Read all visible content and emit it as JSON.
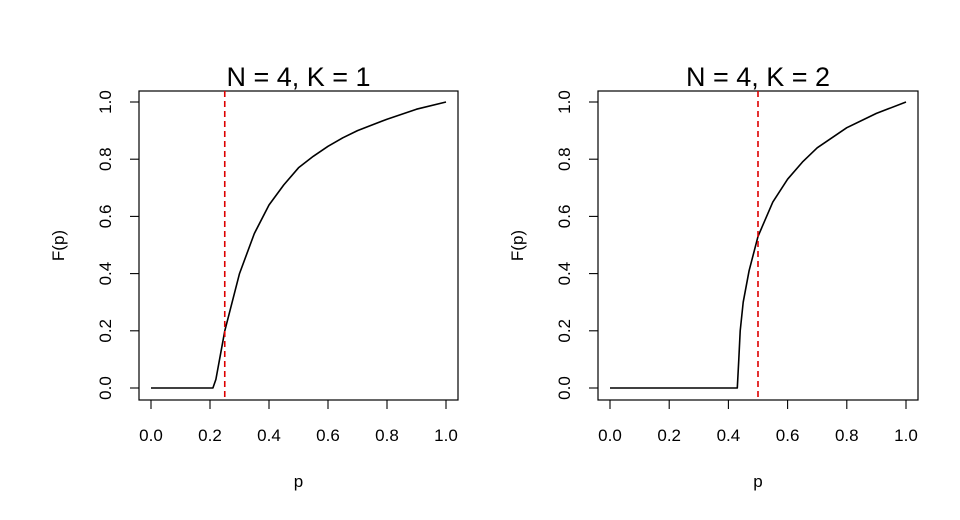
{
  "chart_data": [
    {
      "type": "line",
      "title": "N = 4, K = 1",
      "xlabel": "p",
      "ylabel": "F(p)",
      "xlim": [
        0,
        1
      ],
      "ylim": [
        0,
        1
      ],
      "xticks": [
        "0.0",
        "0.2",
        "0.4",
        "0.6",
        "0.8",
        "1.0"
      ],
      "yticks": [
        "0.0",
        "0.2",
        "0.4",
        "0.6",
        "0.8",
        "1.0"
      ],
      "grid": false,
      "reference_line": {
        "orientation": "vertical",
        "x": 0.25,
        "style": "dashed",
        "color": "#dd0000"
      },
      "series": [
        {
          "color": "#000000",
          "x": [
            0,
            0.21,
            0.22,
            0.25,
            0.3,
            0.35,
            0.4,
            0.45,
            0.5,
            0.55,
            0.6,
            0.65,
            0.7,
            0.8,
            0.9,
            1.0
          ],
          "y": [
            0,
            0,
            0.03,
            0.2,
            0.4,
            0.54,
            0.64,
            0.71,
            0.77,
            0.81,
            0.845,
            0.875,
            0.9,
            0.94,
            0.975,
            1.0
          ]
        }
      ]
    },
    {
      "type": "line",
      "title": "N = 4, K = 2",
      "xlabel": "p",
      "ylabel": "F(p)",
      "xlim": [
        0,
        1
      ],
      "ylim": [
        0,
        1
      ],
      "xticks": [
        "0.0",
        "0.2",
        "0.4",
        "0.6",
        "0.8",
        "1.0"
      ],
      "yticks": [
        "0.0",
        "0.2",
        "0.4",
        "0.6",
        "0.8",
        "1.0"
      ],
      "grid": false,
      "reference_line": {
        "orientation": "vertical",
        "x": 0.5,
        "style": "dashed",
        "color": "#dd0000"
      },
      "series": [
        {
          "color": "#000000",
          "x": [
            0,
            0.43,
            0.435,
            0.44,
            0.45,
            0.47,
            0.5,
            0.55,
            0.6,
            0.65,
            0.7,
            0.8,
            0.9,
            1.0
          ],
          "y": [
            0,
            0,
            0.1,
            0.2,
            0.3,
            0.41,
            0.53,
            0.65,
            0.73,
            0.79,
            0.84,
            0.91,
            0.96,
            1.0
          ]
        }
      ]
    }
  ]
}
